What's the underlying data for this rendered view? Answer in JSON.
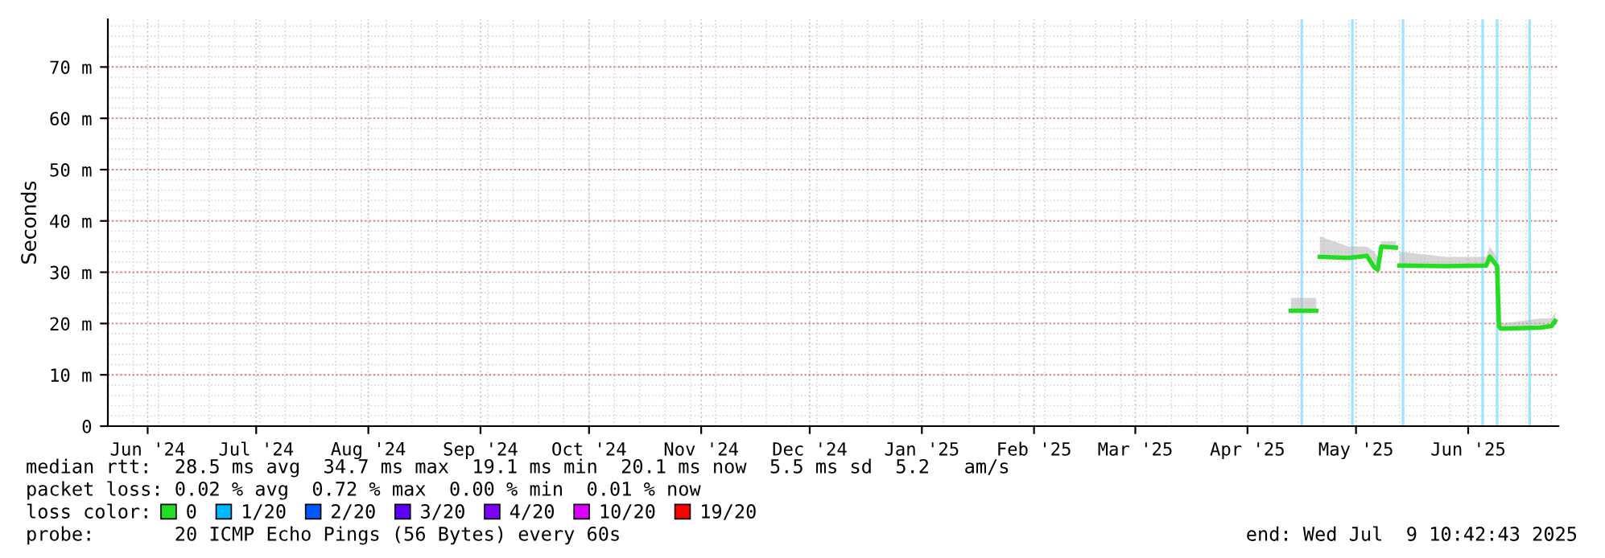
{
  "chart_data": {
    "type": "line",
    "ylabel": "Seconds",
    "xlim": [
      "2024-06-04",
      "2025-07-09T22:00"
    ],
    "xticks": [
      {
        "value": "2024-06-15",
        "label": "Jun '24"
      },
      {
        "value": "2024-07-15",
        "label": "Jul '24"
      },
      {
        "value": "2024-08-15",
        "label": "Aug '24"
      },
      {
        "value": "2024-09-15",
        "label": "Sep '24"
      },
      {
        "value": "2024-10-15",
        "label": "Oct '24"
      },
      {
        "value": "2024-11-15",
        "label": "Nov '24"
      },
      {
        "value": "2024-12-15",
        "label": "Dec '24"
      },
      {
        "value": "2025-01-15",
        "label": "Jan '25"
      },
      {
        "value": "2025-02-15",
        "label": "Feb '25"
      },
      {
        "value": "2025-03-15",
        "label": "Mar '25"
      },
      {
        "value": "2025-04-15",
        "label": "Apr '25"
      },
      {
        "value": "2025-05-15",
        "label": "May '25"
      },
      {
        "value": "2025-06-15",
        "label": "Jun '25"
      }
    ],
    "ylim": [
      0,
      79.3
    ],
    "yticks": [
      0,
      {
        "value": 10,
        "label": "10 m"
      },
      {
        "value": 20,
        "label": "20 m"
      },
      {
        "value": 30,
        "label": "30 m"
      },
      {
        "value": 40,
        "label": "40 m"
      },
      {
        "value": 50,
        "label": "50 m"
      },
      {
        "value": 60,
        "label": "60 m"
      },
      {
        "value": 70,
        "label": "70 m"
      }
    ],
    "grid": true,
    "legend": "bottom",
    "legend_title": "loss color:",
    "x": [
      "2025-04-27",
      "2025-05-04",
      "2025-05-04T18:00",
      "2025-05-05",
      "2025-05-13",
      "2025-05-18",
      "2025-05-20",
      "2025-05-21",
      "2025-05-22",
      "2025-05-26",
      "2025-05-26T12:00",
      "2025-05-27",
      "2025-06-09",
      "2025-06-20",
      "2025-06-21",
      "2025-06-23",
      "2025-06-23T12:00",
      "2025-06-24",
      "2025-07-05",
      "2025-07-08",
      "2025-07-09"
    ],
    "series": [
      {
        "name": "0",
        "color": "#22dd22",
        "values": [
          22.5,
          22.5,
          null,
          33,
          32.8,
          33.2,
          31,
          30.5,
          35,
          34.8,
          null,
          31.3,
          31.2,
          31.3,
          33,
          31.2,
          19.5,
          19,
          19.2,
          19.5,
          20.5
        ],
        "lower": [
          22.2,
          22.2,
          null,
          32.7,
          32.5,
          32.9,
          30.7,
          30.2,
          34.7,
          34.5,
          null,
          31,
          30.9,
          31,
          32.7,
          30.9,
          19.2,
          18.7,
          18.9,
          19.2,
          20.2
        ],
        "upper": [
          25,
          25,
          null,
          37,
          35,
          35,
          34,
          33,
          36,
          36,
          null,
          34,
          33,
          33,
          35,
          33,
          20.5,
          20,
          21,
          21,
          22
        ]
      },
      {
        "name": "1/20",
        "color": "#00b8ff",
        "values": [
          null,
          null,
          null,
          null,
          null,
          null,
          null,
          null,
          null,
          null,
          null,
          null,
          null,
          null,
          null,
          null,
          null,
          null,
          null,
          null,
          null
        ]
      },
      {
        "name": "2/20",
        "color": "#0059ff",
        "values": [
          null,
          null,
          null,
          null,
          null,
          null,
          null,
          null,
          null,
          null,
          null,
          null,
          null,
          null,
          null,
          null,
          null,
          null,
          null,
          null,
          null
        ]
      },
      {
        "name": "3/20",
        "color": "#5e00ff",
        "values": [
          null,
          null,
          null,
          null,
          null,
          null,
          null,
          null,
          null,
          null,
          null,
          null,
          null,
          null,
          null,
          null,
          null,
          null,
          null,
          null,
          null
        ]
      },
      {
        "name": "4/20",
        "color": "#7e00ff",
        "values": [
          null,
          null,
          null,
          null,
          null,
          null,
          null,
          null,
          null,
          null,
          null,
          null,
          null,
          null,
          null,
          null,
          null,
          null,
          null,
          null,
          null
        ]
      },
      {
        "name": "10/20",
        "color": "#dd00ff",
        "values": [
          null,
          null,
          null,
          null,
          null,
          null,
          null,
          null,
          null,
          null,
          null,
          null,
          null,
          null,
          null,
          null,
          null,
          null,
          null,
          null,
          null
        ]
      },
      {
        "name": "19/20",
        "color": "#ff0000",
        "values": [
          null,
          null,
          null,
          null,
          null,
          null,
          null,
          null,
          null,
          null,
          null,
          null,
          null,
          null,
          null,
          null,
          null,
          null,
          null,
          null,
          null
        ]
      }
    ],
    "ref_lines": [
      {
        "axis": "x",
        "value": "2025-04-30",
        "color": "#a0e4ff"
      },
      {
        "axis": "x",
        "value": "2025-05-14",
        "color": "#a0e4ff"
      },
      {
        "axis": "x",
        "value": "2025-05-28",
        "color": "#a0e4ff"
      },
      {
        "axis": "x",
        "value": "2025-06-19",
        "color": "#a0e4ff"
      },
      {
        "axis": "x",
        "value": "2025-06-23",
        "color": "#a0e4ff"
      },
      {
        "axis": "x",
        "value": "2025-07-02",
        "color": "#a0e4ff"
      }
    ],
    "annotations": [
      "median rtt:  28.5 ms avg  34.7 ms max  19.1 ms min  20.1 ms now  5.5 ms sd  5.2   am/s",
      "packet loss: 0.02 % avg  0.72 % max  0.00 % min  0.01 % now",
      "probe:       20 ICMP Echo Pings (56 Bytes) every 60s",
      "end: Wed Jul  9 10:42:43 2025"
    ]
  }
}
